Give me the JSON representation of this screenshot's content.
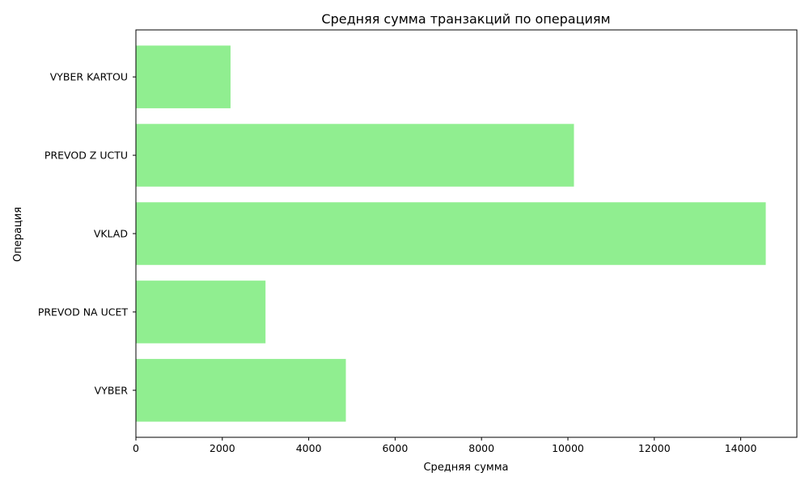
{
  "chart_data": {
    "type": "bar",
    "orientation": "horizontal",
    "title": "Средняя сумма транзакций по операциям",
    "xlabel": "Средняя сумма",
    "ylabel": "Операция",
    "categories": [
      "VYBER",
      "PREVOD NA UCET",
      "VKLAD",
      "PREVOD Z UCTU",
      "VYBER KARTOU"
    ],
    "values": [
      4860,
      3000,
      14580,
      10140,
      2190
    ],
    "xlim": [
      0,
      15300
    ],
    "xticks": [
      0,
      2000,
      4000,
      6000,
      8000,
      10000,
      12000,
      14000
    ],
    "grid": false,
    "bar_color": "#90ee90"
  }
}
